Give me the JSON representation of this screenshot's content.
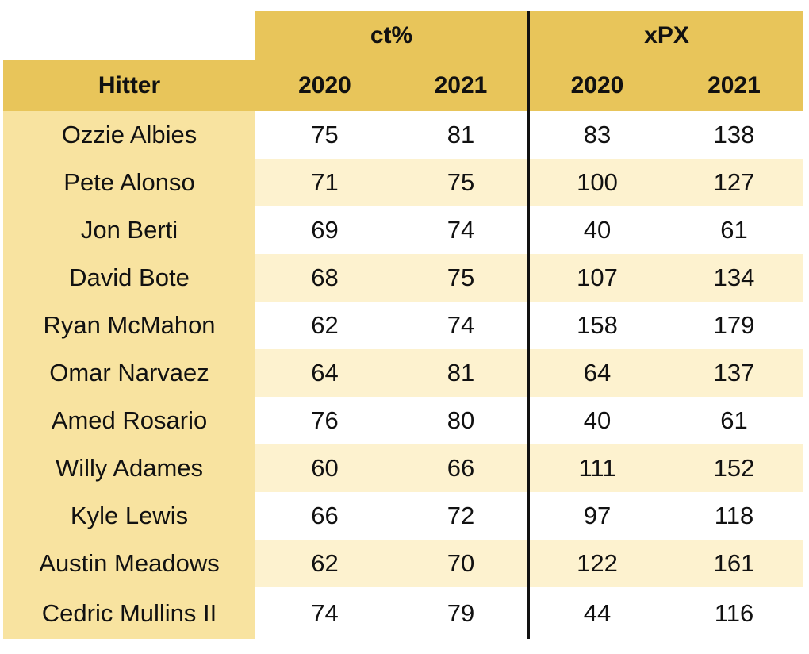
{
  "chart_data": {
    "type": "table",
    "group_headers": [
      {
        "label": "ct%",
        "spans": [
          "2020",
          "2021"
        ]
      },
      {
        "label": "xPX",
        "spans": [
          "2020",
          "2021"
        ]
      }
    ],
    "columns": [
      "Hitter",
      "2020",
      "2021",
      "2020",
      "2021"
    ],
    "rows": [
      {
        "hitter": "Ozzie Albies",
        "ct2020": "75",
        "ct2021": "81",
        "xpx2020": "83",
        "xpx2021": "138"
      },
      {
        "hitter": "Pete Alonso",
        "ct2020": "71",
        "ct2021": "75",
        "xpx2020": "100",
        "xpx2021": "127"
      },
      {
        "hitter": "Jon Berti",
        "ct2020": "69",
        "ct2021": "74",
        "xpx2020": "40",
        "xpx2021": "61"
      },
      {
        "hitter": "David Bote",
        "ct2020": "68",
        "ct2021": "75",
        "xpx2020": "107",
        "xpx2021": "134"
      },
      {
        "hitter": "Ryan McMahon",
        "ct2020": "62",
        "ct2021": "74",
        "xpx2020": "158",
        "xpx2021": "179"
      },
      {
        "hitter": "Omar Narvaez",
        "ct2020": "64",
        "ct2021": "81",
        "xpx2020": "64",
        "xpx2021": "137"
      },
      {
        "hitter": "Amed Rosario",
        "ct2020": "76",
        "ct2021": "80",
        "xpx2020": "40",
        "xpx2021": "61"
      },
      {
        "hitter": "Willy Adames",
        "ct2020": "60",
        "ct2021": "66",
        "xpx2020": "111",
        "xpx2021": "152"
      },
      {
        "hitter": "Kyle Lewis",
        "ct2020": "66",
        "ct2021": "72",
        "xpx2020": "97",
        "xpx2021": "118"
      },
      {
        "hitter": "Austin Meadows",
        "ct2020": "62",
        "ct2021": "70",
        "xpx2020": "122",
        "xpx2021": "161"
      },
      {
        "hitter": "Cedric Mullins II",
        "ct2020": "74",
        "ct2021": "79",
        "xpx2020": "44",
        "xpx2021": "116"
      }
    ],
    "colors": {
      "header": "#e8c55a",
      "hitter_column": "#f8e3a0",
      "band_light": "#fdf2cf",
      "band_white": "#ffffff",
      "divider": "#111111"
    }
  }
}
